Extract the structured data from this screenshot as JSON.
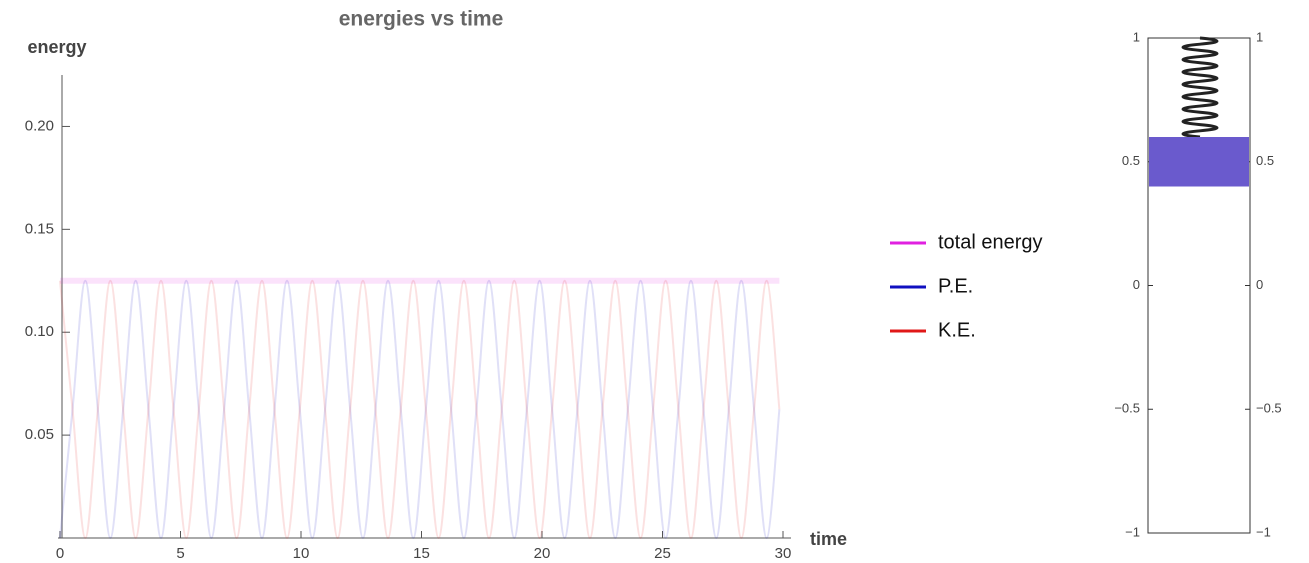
{
  "chart_data": [
    {
      "type": "line",
      "title": "energies vs time",
      "ylabel": "energy",
      "xlabel": "time",
      "xlim": [
        0,
        30
      ],
      "xticks": [
        0,
        5,
        10,
        15,
        20,
        25,
        30
      ],
      "ylim": [
        0,
        0.225
      ],
      "yticks": [
        0.05,
        {
          "value": 0.1,
          "label": "0.10"
        },
        0.15,
        {
          "value": 0.2,
          "label": "0.20"
        }
      ],
      "x": [
        0,
        0.52,
        1.05,
        1.57,
        2.09,
        2.62,
        3.14,
        3.67,
        4.19,
        4.71,
        5.24,
        5.76,
        6.28,
        6.81,
        7.33,
        7.85,
        8.38,
        8.9,
        9.42,
        9.95,
        10.47,
        11.0,
        11.52,
        12.04,
        12.57,
        13.09,
        13.61,
        14.14,
        14.66,
        15.18,
        15.71,
        16.23,
        16.76,
        17.28,
        17.8,
        18.33,
        18.85,
        19.37,
        19.9,
        20.42,
        20.94,
        21.47,
        21.99,
        22.51,
        23.04,
        23.56,
        24.09,
        24.61,
        25.13,
        25.66,
        26.18,
        26.7,
        27.23,
        27.75,
        28.27,
        28.8,
        29.32,
        29.85
      ],
      "series": [
        {
          "name": "total energy",
          "color": "#e020e0",
          "values": [
            0.125,
            0.125,
            0.125,
            0.125,
            0.125,
            0.125,
            0.125,
            0.125,
            0.125,
            0.125,
            0.125,
            0.125,
            0.125,
            0.125,
            0.125,
            0.125,
            0.125,
            0.125,
            0.125,
            0.125,
            0.125,
            0.125,
            0.125,
            0.125,
            0.125,
            0.125,
            0.125,
            0.125,
            0.125,
            0.125,
            0.125,
            0.125,
            0.125,
            0.125,
            0.125,
            0.125,
            0.125,
            0.125,
            0.125,
            0.125,
            0.125,
            0.125,
            0.125,
            0.125,
            0.125,
            0.125,
            0.125,
            0.125,
            0.125,
            0.125,
            0.125,
            0.125,
            0.125,
            0.125,
            0.125,
            0.125,
            0.125,
            0.125
          ]
        },
        {
          "name": "P.E.",
          "color": "#1010c0",
          "values": [
            0,
            0.0625,
            0.125,
            0.0625,
            0,
            0.0625,
            0.125,
            0.0625,
            0,
            0.0625,
            0.125,
            0.0625,
            0,
            0.0625,
            0.125,
            0.0625,
            0,
            0.0625,
            0.125,
            0.0625,
            0,
            0.0625,
            0.125,
            0.0625,
            0,
            0.0625,
            0.125,
            0.0625,
            0,
            0.0625,
            0.125,
            0.0625,
            0,
            0.0625,
            0.125,
            0.0625,
            0,
            0.0625,
            0.125,
            0.0625,
            0,
            0.0625,
            0.125,
            0.0625,
            0,
            0.0625,
            0.125,
            0.0625,
            0,
            0.0625,
            0.125,
            0.0625,
            0,
            0.0625,
            0.125,
            0.0625,
            0,
            0.0625
          ]
        },
        {
          "name": "K.E.",
          "color": "#e01818",
          "values": [
            0.125,
            0.0625,
            0,
            0.0625,
            0.125,
            0.0625,
            0,
            0.0625,
            0.125,
            0.0625,
            0,
            0.0625,
            0.125,
            0.0625,
            0,
            0.0625,
            0.125,
            0.0625,
            0,
            0.0625,
            0.125,
            0.0625,
            0,
            0.0625,
            0.125,
            0.0625,
            0,
            0.0625,
            0.125,
            0.0625,
            0,
            0.0625,
            0.125,
            0.0625,
            0,
            0.0625,
            0.125,
            0.0625,
            0,
            0.0625,
            0.125,
            0.0625,
            0,
            0.0625,
            0.125,
            0.0625,
            0,
            0.0625,
            0.125,
            0.0625,
            0,
            0.0625,
            0.125,
            0.0625,
            0,
            0.0625,
            0.125,
            0.0625
          ]
        }
      ]
    },
    {
      "type": "spring",
      "ylim": [
        -1,
        1
      ],
      "yticks": [
        {
          "value": -1,
          "label": "−1"
        },
        {
          "value": -0.5,
          "label": "−0.5"
        },
        0,
        0.5,
        1
      ],
      "spring_top": 1,
      "mass": {
        "bottom": 0.4,
        "top": 0.6,
        "color": "#6a5acd"
      }
    }
  ]
}
